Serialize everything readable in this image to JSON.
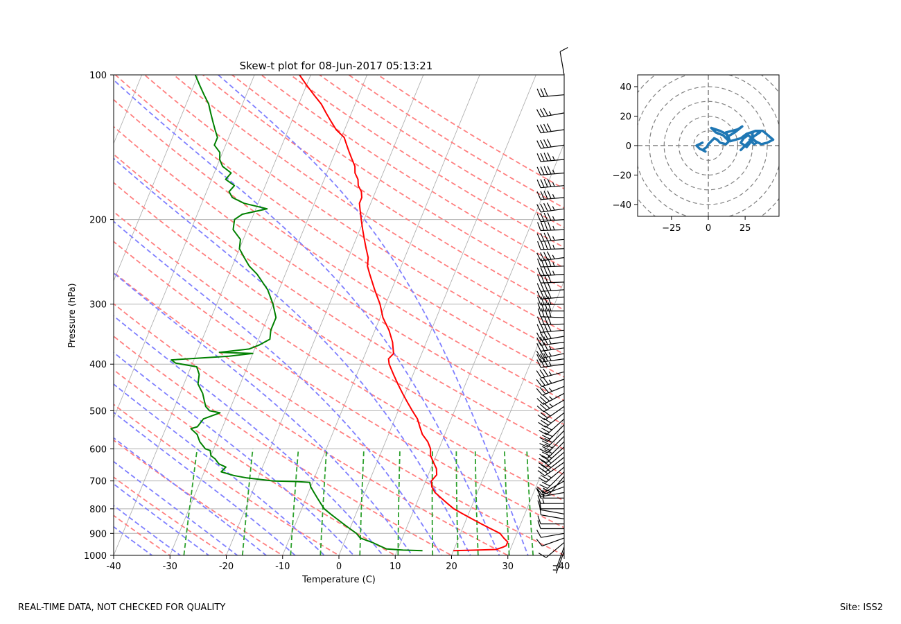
{
  "footer": {
    "disclaimer": "REAL-TIME DATA, NOT CHECKED FOR QUALITY",
    "site": "Site: ISS2"
  },
  "chart_data": [
    {
      "type": "line",
      "subtype": "skew-t log-p",
      "title": "Skew-t plot for 08-Jun-2017 05:13:21",
      "xlabel": "Temperature (C)",
      "ylabel": "Pressure (hPa)",
      "xlim": [
        -40,
        40
      ],
      "ylim": [
        1000,
        100
      ],
      "yscale": "log",
      "x_ticks": [
        -40,
        -30,
        -20,
        -10,
        0,
        10,
        20,
        30,
        40
      ],
      "y_ticks": [
        100,
        200,
        300,
        400,
        500,
        600,
        700,
        800,
        900,
        1000
      ],
      "grid": true,
      "colors": {
        "temperature": "#ff0000",
        "dewpoint": "#008000",
        "dry_adiabats": "#ff7f7f",
        "moist_adiabats": "#7f7fff",
        "mixing_ratio": "#2ca02c",
        "isotherms": "#b0b0b0"
      },
      "series": [
        {
          "key": "temperature",
          "pressure": [
            978,
            975,
            972,
            962,
            955,
            938,
            920,
            900,
            880,
            860,
            840,
            820,
            800,
            780,
            760,
            740,
            720,
            700,
            680,
            660,
            640,
            620,
            600,
            580,
            560,
            540,
            520,
            500,
            480,
            460,
            440,
            420,
            400,
            390,
            380,
            370,
            360,
            340,
            320,
            300,
            280,
            260,
            250,
            240,
            230,
            220,
            210,
            200,
            195,
            190,
            185,
            180,
            175,
            170,
            165,
            160,
            155,
            150,
            145,
            140,
            135,
            130,
            125,
            120,
            115,
            110,
            105,
            100
          ],
          "values": [
            20.0,
            24.0,
            27.5,
            28.5,
            29.0,
            29.0,
            28.0,
            27.0,
            25.0,
            23.0,
            21.0,
            19.0,
            17.0,
            15.5,
            14.0,
            12.5,
            11.5,
            11.0,
            11.5,
            11.0,
            10.0,
            9.0,
            8.5,
            7.5,
            6.0,
            5.0,
            4.0,
            2.5,
            1.0,
            -0.5,
            -2.0,
            -3.5,
            -5.0,
            -5.5,
            -5.0,
            -5.5,
            -6.0,
            -7.5,
            -9.5,
            -11.0,
            -13.0,
            -15.0,
            -16.0,
            -16.5,
            -17.5,
            -18.5,
            -19.5,
            -20.5,
            -21.0,
            -21.5,
            -22.0,
            -22.0,
            -22.5,
            -23.5,
            -24.0,
            -25.0,
            -25.5,
            -26.5,
            -27.5,
            -28.5,
            -29.5,
            -31.5,
            -33.0,
            -34.5,
            -36.0,
            -38.0,
            -40.0,
            -42.0
          ]
        },
        {
          "key": "dewpoint",
          "pressure": [
            978,
            975,
            970,
            955,
            940,
            920,
            900,
            880,
            860,
            840,
            820,
            800,
            780,
            760,
            740,
            720,
            705,
            702,
            700,
            690,
            682,
            670,
            655,
            645,
            630,
            620,
            605,
            600,
            580,
            560,
            545,
            540,
            520,
            505,
            500,
            490,
            480,
            460,
            440,
            420,
            405,
            398,
            392,
            385,
            380,
            378,
            372,
            365,
            355,
            340,
            320,
            300,
            280,
            260,
            250,
            240,
            230,
            220,
            210,
            200,
            195,
            190,
            185,
            180,
            175,
            170,
            165,
            160,
            155,
            150,
            145,
            140,
            135,
            130,
            125,
            120,
            115,
            110,
            105,
            100
          ],
          "values": [
            14.5,
            11.0,
            8.0,
            6.5,
            5.0,
            2.5,
            1.5,
            0.0,
            -1.5,
            -3.0,
            -4.5,
            -6.0,
            -7.0,
            -8.0,
            -9.0,
            -10.0,
            -10.5,
            -13.0,
            -17.0,
            -22.0,
            -24.5,
            -27.0,
            -26.5,
            -28.0,
            -29.0,
            -30.0,
            -30.5,
            -31.5,
            -33.0,
            -34.0,
            -35.5,
            -34.5,
            -34.0,
            -31.5,
            -33.5,
            -34.5,
            -35.0,
            -36.0,
            -37.5,
            -38.0,
            -39.0,
            -43.0,
            -44.0,
            -34.0,
            -30.0,
            -36.0,
            -31.0,
            -29.5,
            -28.0,
            -28.5,
            -28.5,
            -30.0,
            -32.0,
            -35.0,
            -37.0,
            -38.5,
            -40.0,
            -40.5,
            -42.5,
            -43.0,
            -42.0,
            -38.0,
            -42.5,
            -45.0,
            -46.0,
            -45.5,
            -47.5,
            -47.0,
            -49.0,
            -50.0,
            -50.5,
            -52.0,
            -52.0,
            -53.0,
            -54.0,
            -55.0,
            -56.0,
            -57.5,
            -59.0,
            -60.5
          ]
        }
      ],
      "wind_barbs": {
        "color": "#000000",
        "pressure": [
          100,
          110,
          120,
          130,
          140,
          150,
          160,
          170,
          180,
          190,
          200,
          210,
          220,
          230,
          240,
          250,
          260,
          270,
          280,
          290,
          300,
          310,
          320,
          330,
          340,
          350,
          360,
          370,
          380,
          390,
          400,
          415,
          430,
          445,
          460,
          475,
          490,
          505,
          520,
          535,
          550,
          565,
          580,
          595,
          610,
          625,
          640,
          655,
          670,
          685,
          700,
          720,
          740,
          760,
          780,
          800,
          820,
          840,
          860,
          880,
          900,
          920,
          940,
          960,
          980
        ],
        "speed_kt": [
          10,
          30,
          35,
          40,
          40,
          45,
          45,
          45,
          45,
          45,
          45,
          45,
          45,
          45,
          45,
          45,
          45,
          40,
          40,
          40,
          40,
          40,
          40,
          40,
          40,
          40,
          35,
          35,
          35,
          35,
          35,
          35,
          35,
          35,
          35,
          35,
          30,
          30,
          30,
          30,
          30,
          30,
          30,
          25,
          25,
          25,
          25,
          25,
          20,
          20,
          15,
          15,
          15,
          15,
          15,
          10,
          10,
          10,
          10,
          10,
          10,
          10,
          10,
          5,
          5
        ],
        "direction_deg": [
          350,
          265,
          260,
          262,
          262,
          265,
          265,
          265,
          265,
          262,
          265,
          268,
          265,
          268,
          262,
          268,
          266,
          268,
          266,
          265,
          268,
          270,
          272,
          268,
          265,
          260,
          262,
          262,
          258,
          262,
          262,
          255,
          252,
          248,
          242,
          240,
          235,
          232,
          228,
          225,
          225,
          225,
          225,
          228,
          230,
          232,
          235,
          230,
          225,
          220,
          240,
          250,
          260,
          270,
          270,
          270,
          280,
          280,
          270,
          270,
          260,
          250,
          230,
          200,
          200
        ]
      }
    },
    {
      "type": "line",
      "subtype": "hodograph",
      "title": "",
      "xlim": [
        -48,
        48
      ],
      "ylim": [
        -48,
        48
      ],
      "x_ticks": [
        -25,
        0,
        25
      ],
      "y_ticks": [
        -40,
        -20,
        0,
        20,
        40
      ],
      "ring_spacing": 10,
      "grid": true,
      "colors": {
        "trace": "#1f77b4",
        "rings": "#808080"
      },
      "u": [
        -4,
        -8,
        -6,
        -2,
        -4,
        -1,
        0,
        2,
        4,
        6,
        8,
        12,
        14,
        10,
        5,
        2,
        8,
        12,
        14,
        12,
        16,
        20,
        23,
        18,
        13,
        15,
        22,
        26,
        32,
        37,
        44,
        40,
        36,
        30,
        30,
        32,
        35,
        32,
        28,
        31,
        33,
        31,
        27,
        24,
        22,
        26,
        30,
        28,
        22
      ],
      "v": [
        2,
        0,
        -2,
        -4,
        -3,
        -1,
        1,
        3,
        5,
        4,
        2,
        1,
        3,
        7,
        9,
        12,
        10,
        8,
        5,
        9,
        10,
        11,
        13,
        9,
        6,
        3,
        5,
        8,
        10,
        10,
        4,
        2,
        1,
        4,
        9,
        10,
        9,
        7,
        4,
        1,
        2,
        4,
        7,
        5,
        2,
        -1,
        4,
        3,
        -3
      ]
    }
  ]
}
